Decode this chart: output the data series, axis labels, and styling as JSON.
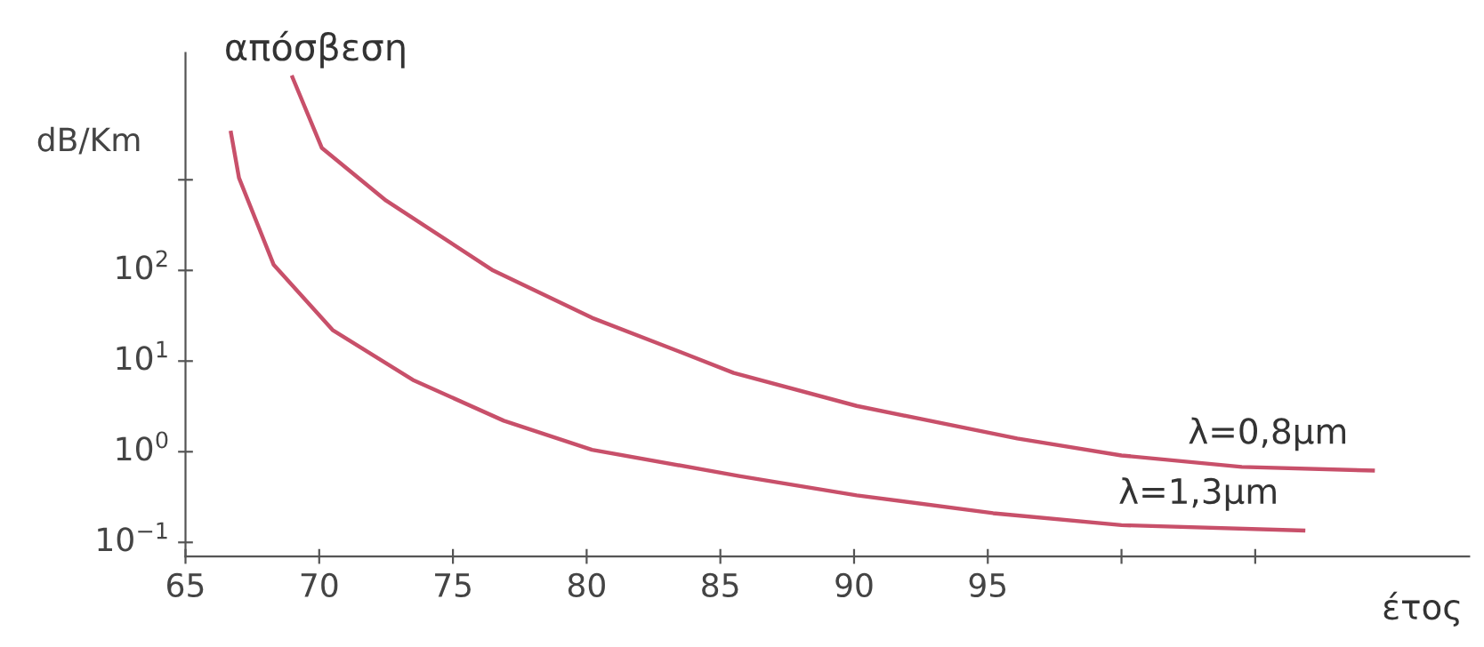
{
  "chart_data": {
    "type": "line",
    "ylabel": "απόσβεση",
    "xlabel": "έτος",
    "annotations": [
      "dB/Km",
      "λ=0,8μm",
      "λ=1,3μm"
    ],
    "log": "y",
    "xlim": [
      65,
      113
    ],
    "ylim": [
      0.07,
      25000
    ],
    "xticks": [
      65,
      70,
      75,
      80,
      85,
      90,
      95,
      {
        "value": 100,
        "label": null
      },
      {
        "value": 105,
        "label": null
      }
    ],
    "yticks": [
      {
        "value": 0.1,
        "label": "10$^{−1}$"
      },
      {
        "value": 1,
        "label": "10$^{0}$"
      },
      {
        "value": 10,
        "label": "10$^{1}$"
      },
      {
        "value": 100,
        "label": "10$^{2}$"
      },
      {
        "value": 1000,
        "label": null
      }
    ],
    "grid": false,
    "marker": "none",
    "line_style": "solid",
    "series": [
      {
        "color": "#c8506a",
        "x": [
          69.0,
          70.1,
          72.5,
          76.5,
          80.2,
          83.5,
          85.5,
          90.1,
          96.1,
          100,
          104.5,
          109.4
        ],
        "values": [
          13500,
          2240,
          590,
          100,
          30,
          12.6,
          7.4,
          3.2,
          1.4,
          0.91,
          0.68,
          0.62
        ]
      },
      {
        "color": "#c8506a",
        "x": [
          66.7,
          67.0,
          68.3,
          70.5,
          73.5,
          76.9,
          80.2,
          85.7,
          90.1,
          95.2,
          100,
          106.8
        ],
        "values": [
          3300,
          1050,
          115,
          22,
          6.2,
          2.2,
          1.05,
          0.54,
          0.33,
          0.21,
          0.155,
          0.135
        ]
      }
    ]
  }
}
